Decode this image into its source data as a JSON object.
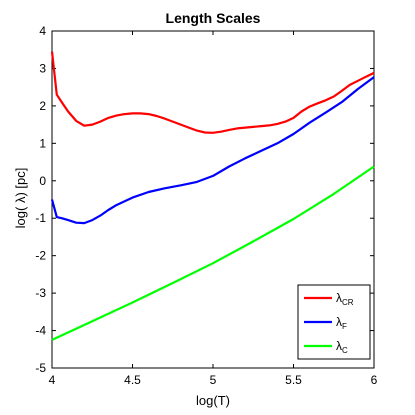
{
  "chart_data": {
    "type": "line",
    "title": "Length Scales",
    "xlabel": "log(T)",
    "ylabel": "log( λ) [pc]",
    "xlim": [
      4,
      6
    ],
    "ylim": [
      -5,
      4
    ],
    "xticks": [
      4,
      4.5,
      5,
      5.5,
      6
    ],
    "xtick_labels": [
      "4",
      "4.5",
      "5",
      "5.5",
      "6"
    ],
    "yticks": [
      -5,
      -4,
      -3,
      -2,
      -1,
      0,
      1,
      2,
      3,
      4
    ],
    "ytick_labels": [
      "-5",
      "-4",
      "-3",
      "-2",
      "-1",
      "0",
      "1",
      "2",
      "3",
      "4"
    ],
    "grid": false,
    "legend_position": "bottom-right",
    "series": [
      {
        "name": "λ",
        "subscript": "CR",
        "color": "#ff0000",
        "x": [
          4.0,
          4.03,
          4.06,
          4.1,
          4.15,
          4.2,
          4.25,
          4.3,
          4.35,
          4.4,
          4.45,
          4.5,
          4.55,
          4.6,
          4.65,
          4.7,
          4.75,
          4.8,
          4.85,
          4.9,
          4.95,
          5.0,
          5.05,
          5.1,
          5.15,
          5.2,
          5.25,
          5.3,
          5.35,
          5.4,
          5.45,
          5.5,
          5.55,
          5.6,
          5.65,
          5.7,
          5.75,
          5.8,
          5.85,
          5.9,
          5.95,
          6.0
        ],
        "y": [
          3.45,
          2.3,
          2.1,
          1.85,
          1.6,
          1.47,
          1.5,
          1.58,
          1.68,
          1.74,
          1.78,
          1.8,
          1.8,
          1.78,
          1.73,
          1.66,
          1.58,
          1.5,
          1.42,
          1.34,
          1.29,
          1.28,
          1.31,
          1.36,
          1.4,
          1.42,
          1.44,
          1.46,
          1.48,
          1.52,
          1.58,
          1.68,
          1.85,
          1.98,
          2.07,
          2.15,
          2.25,
          2.4,
          2.56,
          2.67,
          2.78,
          2.88
        ]
      },
      {
        "name": "λ",
        "subscript": "F",
        "color": "#0000ff",
        "x": [
          4.0,
          4.03,
          4.06,
          4.1,
          4.15,
          4.2,
          4.25,
          4.3,
          4.35,
          4.4,
          4.5,
          4.6,
          4.7,
          4.8,
          4.9,
          4.95,
          5.0,
          5.1,
          5.2,
          5.3,
          5.4,
          5.5,
          5.6,
          5.7,
          5.8,
          5.9,
          6.0
        ],
        "y": [
          -0.5,
          -0.97,
          -1.0,
          -1.05,
          -1.12,
          -1.13,
          -1.05,
          -0.93,
          -0.78,
          -0.65,
          -0.45,
          -0.3,
          -0.2,
          -0.12,
          -0.03,
          0.05,
          0.13,
          0.38,
          0.6,
          0.8,
          1.0,
          1.25,
          1.55,
          1.82,
          2.1,
          2.45,
          2.77
        ]
      },
      {
        "name": "λ",
        "subscript": "C",
        "color": "#00ff00",
        "x": [
          4.0,
          4.25,
          4.5,
          4.75,
          5.0,
          5.25,
          5.5,
          5.75,
          6.0
        ],
        "y": [
          -4.25,
          -3.75,
          -3.25,
          -2.73,
          -2.2,
          -1.62,
          -1.02,
          -0.35,
          0.38
        ]
      }
    ]
  }
}
